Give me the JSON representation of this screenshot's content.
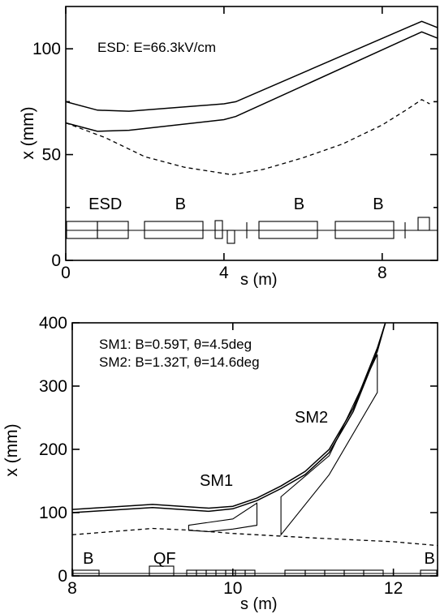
{
  "chart_data": [
    {
      "type": "line",
      "annotation": "ESD: E=66.3kV/cm",
      "xlabel": "s (m)",
      "ylabel": "x (mm)",
      "xlim": [
        0,
        9.4
      ],
      "ylim": [
        0,
        120
      ],
      "xticks": [
        0,
        4,
        8
      ],
      "yticks": [
        0,
        50,
        100
      ],
      "grid": false,
      "series": [
        {
          "style": "solid",
          "x": [
            0,
            0.8,
            1.6,
            4.0,
            4.3,
            9.0,
            9.4
          ],
          "y": [
            75,
            71,
            70.5,
            74,
            75,
            113,
            110
          ]
        },
        {
          "style": "solid",
          "x": [
            0,
            0.8,
            1.6,
            4.0,
            4.3,
            9.0,
            9.4
          ],
          "y": [
            65,
            61,
            61.5,
            66.5,
            68,
            108,
            105
          ]
        },
        {
          "style": "dashed",
          "x": [
            0,
            1.0,
            2.0,
            3.0,
            4.2,
            5.0,
            6.0,
            7.0,
            8.0,
            8.6,
            9.0,
            9.2
          ],
          "y": [
            65,
            58,
            49,
            44,
            40.5,
            43,
            48.5,
            55,
            64,
            71,
            76,
            74
          ]
        }
      ],
      "element_labels": [
        {
          "text": "ESD",
          "x": 1.0
        },
        {
          "text": "B",
          "x": 2.9
        },
        {
          "text": "B",
          "x": 5.9
        },
        {
          "text": "B",
          "x": 7.9
        }
      ]
    },
    {
      "type": "line",
      "annotations": [
        "SM1: B=0.59T, θ=4.5deg",
        "SM2: B=1.32T, θ=14.6deg"
      ],
      "xlabel": "s (m)",
      "ylabel": "x (mm)",
      "xlim": [
        8,
        12.55
      ],
      "ylim": [
        0,
        400
      ],
      "xticks": [
        8,
        10,
        12
      ],
      "yticks": [
        0,
        100,
        200,
        300,
        400
      ],
      "grid": false,
      "series": [
        {
          "style": "solid",
          "x": [
            8.0,
            9.0,
            9.7,
            10.0,
            10.3,
            10.6,
            10.9,
            11.2,
            11.5,
            11.8,
            11.9
          ],
          "y": [
            105,
            113,
            107,
            110,
            123,
            142,
            165,
            200,
            265,
            360,
            400
          ]
        },
        {
          "style": "solid",
          "x": [
            8.0,
            9.0,
            9.7,
            10.0,
            10.3,
            10.6,
            10.9,
            11.2,
            11.5,
            11.8,
            11.9
          ],
          "y": [
            100,
            108,
            102,
            106,
            119,
            138,
            160,
            195,
            260,
            355,
            400
          ]
        },
        {
          "style": "dashed",
          "x": [
            8.0,
            9.0,
            9.5,
            10.0,
            11.0,
            12.0,
            12.55
          ],
          "y": [
            65,
            75,
            72,
            67,
            60,
            54,
            48
          ]
        }
      ],
      "magnets": [
        {
          "name": "SM1",
          "outline": [
            [
              9.45,
              80
            ],
            [
              10.0,
              90
            ],
            [
              10.3,
              115
            ],
            [
              10.3,
              80
            ],
            [
              10.0,
              74
            ],
            [
              9.7,
              70
            ],
            [
              9.45,
              72
            ]
          ]
        },
        {
          "name": "SM2",
          "outline": [
            [
              10.6,
              125
            ],
            [
              11.2,
              190
            ],
            [
              11.8,
              350
            ],
            [
              11.8,
              290
            ],
            [
              11.2,
              160
            ],
            [
              10.6,
              65
            ]
          ]
        }
      ],
      "element_labels": [
        {
          "text": "B",
          "x": 8.2
        },
        {
          "text": "QF",
          "x": 9.15
        },
        {
          "text": "B",
          "x": 12.45
        }
      ]
    }
  ]
}
